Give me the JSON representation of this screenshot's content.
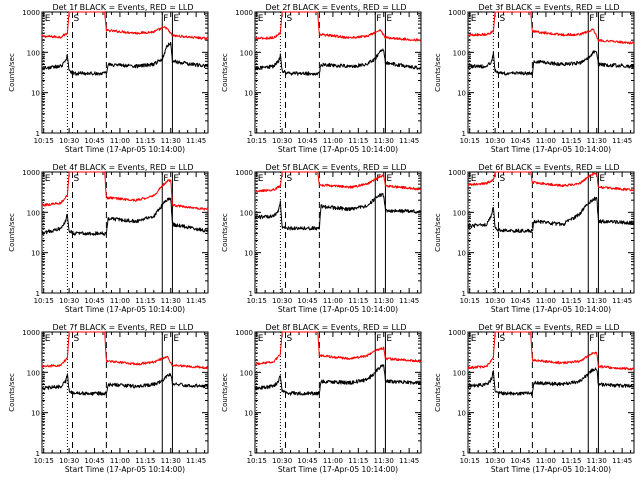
{
  "chart_data": {
    "type": "line",
    "layout": "3x3 grid",
    "x_ticks": [
      "10:15",
      "10:30",
      "10:45",
      "11:00",
      "11:15",
      "11:30",
      "11:45"
    ],
    "xlabel": "Start Time (17-Apr-05 10:14:00)",
    "ylabel": "Counts/sec",
    "y_scale": "log",
    "ylim": [
      1,
      1000
    ],
    "y_ticks": [
      "1",
      "10",
      "100",
      "1000"
    ],
    "xlim": [
      "10:14",
      "11:52"
    ],
    "series_colors": {
      "events": "#000000",
      "lld": "#ff0000"
    },
    "markers": [
      {
        "label": "E",
        "time": "10:15",
        "style": "dotted"
      },
      {
        "label": "",
        "time": "10:29",
        "style": "dotted"
      },
      {
        "label": "S",
        "time": "10:32",
        "style": "dashed"
      },
      {
        "label": "",
        "time": "10:52",
        "style": "dashed"
      },
      {
        "label": "F",
        "time": "11:25",
        "style": "solid"
      },
      {
        "label": "E",
        "time": "11:31",
        "style": "solid"
      }
    ],
    "panels": [
      {
        "title": "Det 1f BLACK = Events, RED = LLD",
        "lld": [
          [
            "10:14",
            250
          ],
          [
            "10:25",
            240
          ],
          [
            "10:29",
            300
          ],
          [
            "10:30",
            1000
          ],
          [
            "10:51",
            1000
          ],
          [
            "10:52",
            350
          ],
          [
            "11:10",
            300
          ],
          [
            "11:20",
            320
          ],
          [
            "11:25",
            400
          ],
          [
            "11:27",
            420
          ],
          [
            "11:31",
            260
          ],
          [
            "11:51",
            220
          ]
        ],
        "events": [
          [
            "10:14",
            40
          ],
          [
            "10:25",
            45
          ],
          [
            "10:28",
            60
          ],
          [
            "10:29",
            90
          ],
          [
            "10:30",
            35
          ],
          [
            "10:33",
            30
          ],
          [
            "10:52",
            30
          ],
          [
            "10:53",
            50
          ],
          [
            "11:10",
            45
          ],
          [
            "11:20",
            50
          ],
          [
            "11:25",
            70
          ],
          [
            "11:28",
            150
          ],
          [
            "11:30",
            160
          ],
          [
            "11:31",
            60
          ],
          [
            "11:51",
            45
          ]
        ]
      },
      {
        "title": "Det 2f BLACK = Events, RED = LLD",
        "lld": [
          [
            "10:14",
            220
          ],
          [
            "10:25",
            230
          ],
          [
            "10:29",
            300
          ],
          [
            "10:30",
            1000
          ],
          [
            "10:51",
            1000
          ],
          [
            "10:52",
            280
          ],
          [
            "11:10",
            230
          ],
          [
            "11:20",
            250
          ],
          [
            "11:25",
            310
          ],
          [
            "11:28",
            360
          ],
          [
            "11:31",
            230
          ],
          [
            "11:51",
            200
          ]
        ],
        "events": [
          [
            "10:14",
            40
          ],
          [
            "10:25",
            45
          ],
          [
            "10:28",
            60
          ],
          [
            "10:29",
            90
          ],
          [
            "10:30",
            35
          ],
          [
            "10:33",
            30
          ],
          [
            "10:52",
            30
          ],
          [
            "10:53",
            50
          ],
          [
            "11:10",
            45
          ],
          [
            "11:20",
            50
          ],
          [
            "11:25",
            70
          ],
          [
            "11:28",
            110
          ],
          [
            "11:30",
            110
          ],
          [
            "11:31",
            55
          ],
          [
            "11:51",
            40
          ]
        ]
      },
      {
        "title": "Det 3f BLACK = Events, RED = LLD",
        "lld": [
          [
            "10:14",
            270
          ],
          [
            "10:25",
            280
          ],
          [
            "10:29",
            330
          ],
          [
            "10:30",
            1000
          ],
          [
            "10:51",
            1000
          ],
          [
            "10:52",
            330
          ],
          [
            "11:10",
            270
          ],
          [
            "11:20",
            280
          ],
          [
            "11:25",
            330
          ],
          [
            "11:28",
            380
          ],
          [
            "11:31",
            200
          ],
          [
            "11:51",
            170
          ]
        ],
        "events": [
          [
            "10:14",
            45
          ],
          [
            "10:25",
            45
          ],
          [
            "10:28",
            60
          ],
          [
            "10:29",
            90
          ],
          [
            "10:30",
            35
          ],
          [
            "10:33",
            30
          ],
          [
            "10:52",
            30
          ],
          [
            "10:53",
            60
          ],
          [
            "11:10",
            50
          ],
          [
            "11:20",
            55
          ],
          [
            "11:25",
            70
          ],
          [
            "11:28",
            100
          ],
          [
            "11:30",
            105
          ],
          [
            "11:31",
            50
          ],
          [
            "11:51",
            45
          ]
        ]
      },
      {
        "title": "Det 4f BLACK = Events, RED = LLD",
        "lld": [
          [
            "10:14",
            150
          ],
          [
            "10:25",
            170
          ],
          [
            "10:29",
            260
          ],
          [
            "10:30",
            1000
          ],
          [
            "10:51",
            1000
          ],
          [
            "10:52",
            230
          ],
          [
            "11:10",
            200
          ],
          [
            "11:20",
            260
          ],
          [
            "11:25",
            450
          ],
          [
            "11:28",
            600
          ],
          [
            "11:30",
            620
          ],
          [
            "11:31",
            150
          ],
          [
            "11:51",
            120
          ]
        ],
        "events": [
          [
            "10:14",
            30
          ],
          [
            "10:25",
            40
          ],
          [
            "10:28",
            60
          ],
          [
            "10:29",
            90
          ],
          [
            "10:30",
            35
          ],
          [
            "10:33",
            30
          ],
          [
            "10:52",
            30
          ],
          [
            "10:53",
            70
          ],
          [
            "11:10",
            60
          ],
          [
            "11:20",
            80
          ],
          [
            "11:25",
            150
          ],
          [
            "11:28",
            210
          ],
          [
            "11:30",
            220
          ],
          [
            "11:31",
            50
          ],
          [
            "11:51",
            35
          ]
        ]
      },
      {
        "title": "Det 5f BLACK = Events, RED = LLD",
        "lld": [
          [
            "10:14",
            330
          ],
          [
            "10:25",
            360
          ],
          [
            "10:29",
            450
          ],
          [
            "10:30",
            1000
          ],
          [
            "10:51",
            1000
          ],
          [
            "10:52",
            480
          ],
          [
            "11:10",
            420
          ],
          [
            "11:20",
            500
          ],
          [
            "11:25",
            650
          ],
          [
            "11:28",
            800
          ],
          [
            "11:30",
            800
          ],
          [
            "11:31",
            450
          ],
          [
            "11:51",
            380
          ]
        ],
        "events": [
          [
            "10:14",
            75
          ],
          [
            "10:25",
            80
          ],
          [
            "10:28",
            110
          ],
          [
            "10:29",
            180
          ],
          [
            "10:30",
            45
          ],
          [
            "10:33",
            40
          ],
          [
            "10:52",
            40
          ],
          [
            "10:53",
            140
          ],
          [
            "11:10",
            120
          ],
          [
            "11:20",
            140
          ],
          [
            "11:25",
            220
          ],
          [
            "11:28",
            270
          ],
          [
            "11:30",
            270
          ],
          [
            "11:31",
            110
          ],
          [
            "11:51",
            105
          ]
        ]
      },
      {
        "title": "Det 6f BLACK = Events, RED = LLD",
        "lld": [
          [
            "10:14",
            490
          ],
          [
            "10:25",
            520
          ],
          [
            "10:29",
            650
          ],
          [
            "10:30",
            1000
          ],
          [
            "10:51",
            1000
          ],
          [
            "10:52",
            550
          ],
          [
            "11:10",
            460
          ],
          [
            "11:20",
            520
          ],
          [
            "11:25",
            750
          ],
          [
            "11:28",
            900
          ],
          [
            "11:30",
            900
          ],
          [
            "11:31",
            420
          ],
          [
            "11:51",
            360
          ]
        ],
        "events": [
          [
            "10:14",
            45
          ],
          [
            "10:25",
            50
          ],
          [
            "10:28",
            90
          ],
          [
            "10:29",
            140
          ],
          [
            "10:30",
            40
          ],
          [
            "10:33",
            35
          ],
          [
            "10:52",
            35
          ],
          [
            "10:53",
            60
          ],
          [
            "11:10",
            50
          ],
          [
            "11:20",
            90
          ],
          [
            "11:25",
            170
          ],
          [
            "11:28",
            210
          ],
          [
            "11:30",
            220
          ],
          [
            "11:31",
            60
          ],
          [
            "11:51",
            55
          ]
        ]
      },
      {
        "title": "Det 7f BLACK = Events, RED = LLD",
        "lld": [
          [
            "10:14",
            140
          ],
          [
            "10:25",
            150
          ],
          [
            "10:29",
            230
          ],
          [
            "10:30",
            1000
          ],
          [
            "10:51",
            1000
          ],
          [
            "10:52",
            190
          ],
          [
            "11:10",
            160
          ],
          [
            "11:20",
            180
          ],
          [
            "11:25",
            220
          ],
          [
            "11:28",
            240
          ],
          [
            "11:31",
            150
          ],
          [
            "11:51",
            130
          ]
        ],
        "events": [
          [
            "10:14",
            40
          ],
          [
            "10:25",
            45
          ],
          [
            "10:28",
            60
          ],
          [
            "10:29",
            90
          ],
          [
            "10:30",
            35
          ],
          [
            "10:33",
            30
          ],
          [
            "10:52",
            30
          ],
          [
            "10:53",
            50
          ],
          [
            "11:10",
            45
          ],
          [
            "11:20",
            50
          ],
          [
            "11:25",
            60
          ],
          [
            "11:28",
            85
          ],
          [
            "11:30",
            90
          ],
          [
            "11:31",
            50
          ],
          [
            "11:51",
            45
          ]
        ]
      },
      {
        "title": "Det 8f BLACK = Events, RED = LLD",
        "lld": [
          [
            "10:14",
            160
          ],
          [
            "10:25",
            180
          ],
          [
            "10:29",
            280
          ],
          [
            "10:30",
            1000
          ],
          [
            "10:51",
            1000
          ],
          [
            "10:52",
            260
          ],
          [
            "11:10",
            220
          ],
          [
            "11:20",
            260
          ],
          [
            "11:25",
            340
          ],
          [
            "11:28",
            380
          ],
          [
            "11:30",
            400
          ],
          [
            "11:31",
            220
          ],
          [
            "11:51",
            190
          ]
        ],
        "events": [
          [
            "10:14",
            40
          ],
          [
            "10:25",
            45
          ],
          [
            "10:28",
            60
          ],
          [
            "10:29",
            90
          ],
          [
            "10:30",
            35
          ],
          [
            "10:33",
            30
          ],
          [
            "10:52",
            30
          ],
          [
            "10:53",
            60
          ],
          [
            "11:10",
            55
          ],
          [
            "11:20",
            65
          ],
          [
            "11:25",
            100
          ],
          [
            "11:28",
            140
          ],
          [
            "11:30",
            145
          ],
          [
            "11:31",
            60
          ],
          [
            "11:51",
            55
          ]
        ]
      },
      {
        "title": "Det 9f BLACK = Events, RED = LLD",
        "lld": [
          [
            "10:14",
            130
          ],
          [
            "10:25",
            140
          ],
          [
            "10:29",
            230
          ],
          [
            "10:30",
            1000
          ],
          [
            "10:51",
            1000
          ],
          [
            "10:52",
            200
          ],
          [
            "11:10",
            170
          ],
          [
            "11:20",
            190
          ],
          [
            "11:25",
            260
          ],
          [
            "11:28",
            300
          ],
          [
            "11:30",
            300
          ],
          [
            "11:31",
            140
          ],
          [
            "11:51",
            120
          ]
        ],
        "events": [
          [
            "10:14",
            45
          ],
          [
            "10:25",
            50
          ],
          [
            "10:28",
            70
          ],
          [
            "10:29",
            110
          ],
          [
            "10:30",
            35
          ],
          [
            "10:33",
            30
          ],
          [
            "10:52",
            30
          ],
          [
            "10:53",
            55
          ],
          [
            "11:10",
            50
          ],
          [
            "11:20",
            60
          ],
          [
            "11:25",
            90
          ],
          [
            "11:28",
            120
          ],
          [
            "11:30",
            120
          ],
          [
            "11:31",
            50
          ],
          [
            "11:51",
            45
          ]
        ]
      }
    ]
  }
}
